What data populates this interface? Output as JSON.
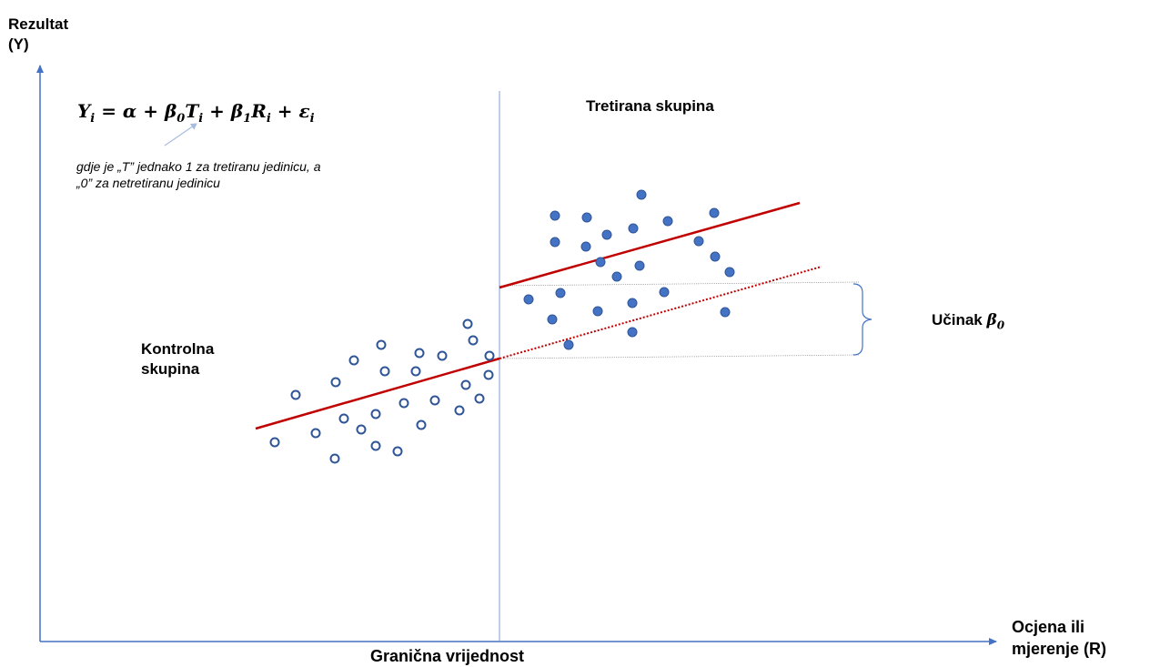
{
  "labels": {
    "y_axis_line1": "Rezultat",
    "y_axis_line2": "(Y)",
    "x_axis_line1": "Ocjena ili",
    "x_axis_line2": "mjerenje (R)",
    "cutoff": "Granična vrijednost",
    "treated_group": "Tretirana skupina",
    "control_line1": "Kontrolna",
    "control_line2": "skupina",
    "effect_text": "Učinak",
    "effect_symbol": "β",
    "effect_sub": "0"
  },
  "formula": {
    "lhs": "Y",
    "i": "i",
    "eq": " = ",
    "alpha": "α",
    "plus": " + ",
    "beta": "β",
    "zero": "0",
    "one": "1",
    "T": "T",
    "R": "R",
    "eps": "ε"
  },
  "note": {
    "line1": "gdje je „T” jednako 1 za tretiranu jedinicu, a",
    "line2": "„0” za netretiranu jedinicu"
  },
  "colors": {
    "axis": "#4472C4",
    "regression_line": "#C00000",
    "treated_points": "#4472C4",
    "control_points": "#2F5597"
  }
}
